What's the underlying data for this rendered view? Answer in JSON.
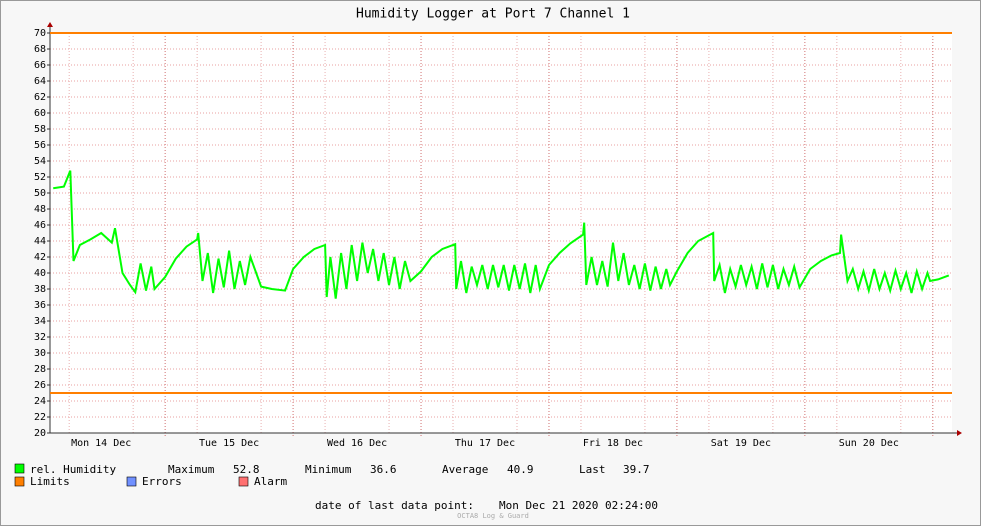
{
  "chart_data": {
    "type": "line",
    "title": "Humidity Logger at Port 7 Channel 1",
    "x": [
      3,
      5,
      6.2,
      6.8,
      8,
      10,
      12,
      14,
      14.6,
      16,
      17.4,
      18.4,
      19.4,
      20.4,
      21.4,
      22,
      24,
      26,
      28,
      30,
      30.2,
      31,
      32,
      33,
      34,
      35,
      36,
      37,
      38,
      39,
      40,
      42,
      44,
      46.5,
      48,
      50,
      52,
      54,
      54.3,
      55,
      56,
      57,
      58,
      59,
      60,
      61,
      62,
      63,
      64,
      65,
      66,
      67,
      68,
      69,
      70,
      72,
      74,
      76,
      78.4,
      78.6,
      79.5,
      80.5,
      81.5,
      82.5,
      83.5,
      84.5,
      85.5,
      86.5,
      87.5,
      88.5,
      89.5,
      90.5,
      91.5,
      92.5,
      93.5,
      94.3,
      96,
      98,
      100,
      102.4,
      102.6,
      103,
      104,
      105,
      106,
      107,
      108,
      109,
      110,
      111,
      112,
      113,
      114,
      115,
      116,
      117,
      118,
      118.7,
      120,
      122,
      124,
      126.8,
      127,
      128,
      129,
      130,
      131,
      132,
      133,
      134,
      135,
      136,
      137,
      138,
      139,
      140,
      141,
      142,
      143,
      145,
      147,
      149,
      150.6,
      150.8,
      152,
      153,
      154,
      155,
      156,
      157,
      158,
      159,
      160,
      161,
      162,
      163,
      164,
      165,
      166,
      167,
      167.5,
      169,
      171
    ],
    "series": [
      {
        "name": "rel. Humidity",
        "color": "#00ff00",
        "values": [
          50.6,
          50.8,
          52.8,
          41.5,
          43.5,
          44.2,
          45,
          43.8,
          45.6,
          40,
          38.5,
          37.6,
          41.2,
          37.8,
          40.8,
          38,
          39.5,
          41.8,
          43.3,
          44.2,
          45,
          39,
          42.5,
          37.5,
          41.8,
          38.2,
          42.8,
          38,
          41.5,
          38.5,
          42,
          38.3,
          38,
          37.8,
          40.5,
          42,
          43,
          43.5,
          37,
          42,
          36.8,
          42.5,
          38,
          43.5,
          39,
          43.8,
          40,
          43,
          39,
          42.5,
          38.5,
          42,
          38,
          41.5,
          39,
          40.2,
          42,
          43,
          43.6,
          38,
          41.5,
          37.5,
          40.8,
          38.5,
          41,
          38,
          41,
          38.2,
          41,
          37.8,
          41,
          38,
          41.2,
          37.5,
          41,
          38,
          41,
          42.5,
          43.7,
          44.8,
          46.3,
          38.5,
          42,
          38.5,
          41.5,
          38.3,
          43.8,
          39,
          42.5,
          38.5,
          41,
          38,
          41.2,
          37.8,
          40.8,
          38,
          40.5,
          38.5,
          40.2,
          42.5,
          44,
          45,
          39,
          41,
          37.5,
          40.5,
          38.3,
          41,
          38.5,
          40.8,
          38,
          41.2,
          38.2,
          41,
          38,
          40.5,
          38.5,
          40.8,
          38.2,
          40.5,
          41.5,
          42.2,
          42.5,
          44.8,
          39,
          40.5,
          38,
          40.2,
          37.8,
          40.5,
          38,
          40,
          37.8,
          40.3,
          38,
          40,
          37.5,
          40.2,
          38,
          40,
          39,
          39.2,
          39.7
        ]
      }
    ],
    "limits": {
      "name": "Limits",
      "color": "#ff7f00",
      "values": [
        70,
        25
      ]
    },
    "xlim": [
      2.4,
      171.6
    ],
    "xticks": [
      {
        "value": 12,
        "label": "Mon 14 Dec"
      },
      {
        "value": 36,
        "label": "Tue 15 Dec"
      },
      {
        "value": 60,
        "label": "Wed 16 Dec"
      },
      {
        "value": 84,
        "label": "Thu 17 Dec"
      },
      {
        "value": 108,
        "label": "Fri 18 Dec"
      },
      {
        "value": 132,
        "label": "Sat 19 Dec"
      },
      {
        "value": 156,
        "label": "Sun 20 Dec"
      }
    ],
    "xgrid": [
      24,
      48,
      72,
      96,
      120,
      144,
      168
    ],
    "xminor": [
      6,
      18,
      30,
      42,
      54,
      66,
      78,
      90,
      102,
      114,
      126,
      138,
      150,
      162
    ],
    "ylim": [
      20,
      70
    ],
    "yticks": [
      20,
      22,
      24,
      26,
      28,
      30,
      32,
      34,
      36,
      38,
      40,
      42,
      44,
      46,
      48,
      50,
      52,
      54,
      56,
      58,
      60,
      62,
      64,
      66,
      68,
      70
    ],
    "grid": true,
    "stats": [
      {
        "label": "Maximum",
        "value": 52.8
      },
      {
        "label": "Minimum",
        "value": 36.6
      },
      {
        "label": "Average",
        "value": 40.9
      },
      {
        "label": "Last",
        "value": 39.7
      }
    ],
    "legend_extra": [
      {
        "name": "Errors",
        "color": "#7090ff"
      },
      {
        "name": "Alarm",
        "color": "#ff7070"
      }
    ],
    "footer": {
      "label": "date of last data point:",
      "value": "Mon Dec 21 2020 02:24:00"
    },
    "watermark": "OCTA8 Log & Guard"
  }
}
